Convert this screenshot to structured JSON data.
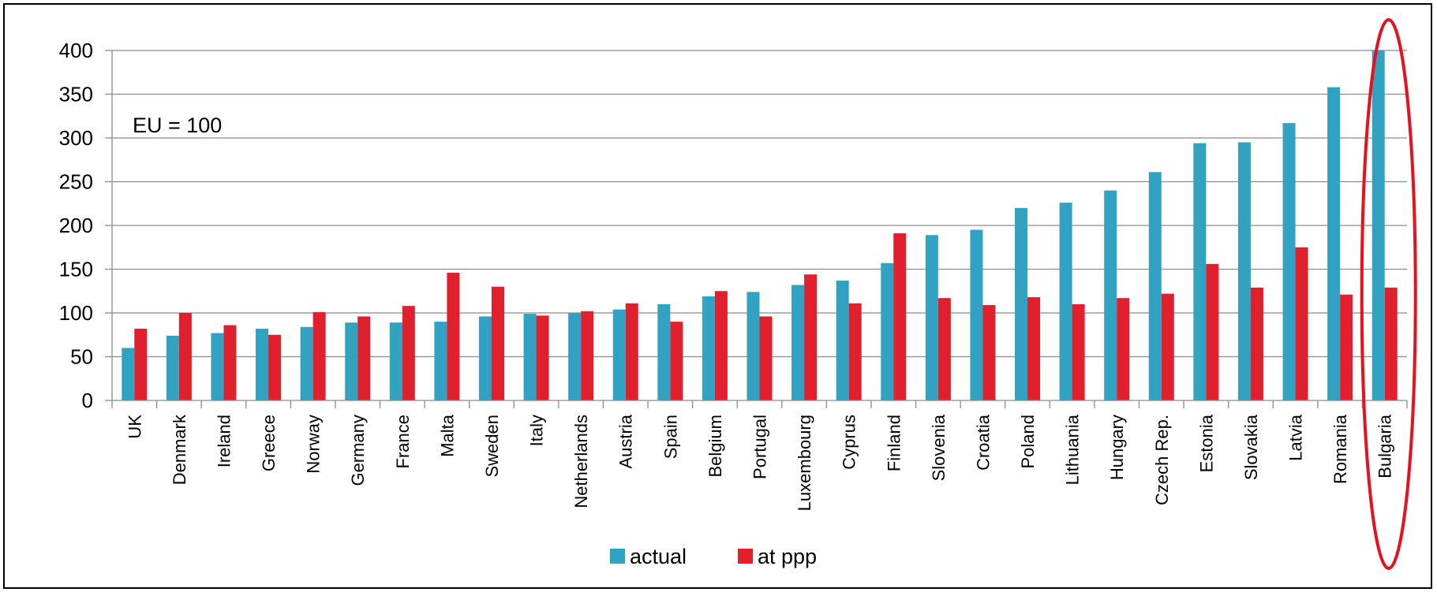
{
  "chart_data": {
    "type": "bar",
    "title": "",
    "xlabel": "",
    "ylabel": "",
    "annotation": "EU = 100",
    "ylim": [
      0,
      400
    ],
    "yticks": [
      0,
      50,
      100,
      150,
      200,
      250,
      300,
      350,
      400
    ],
    "grid": true,
    "legend_position": "bottom",
    "categories": [
      "UK",
      "Denmark",
      "Ireland",
      "Greece",
      "Norway",
      "Germany",
      "France",
      "Malta",
      "Sweden",
      "Italy",
      "Netherlands",
      "Austria",
      "Spain",
      "Belgium",
      "Portugal",
      "Luxembourg",
      "Cyprus",
      "Finland",
      "Slovenia",
      "Croatia",
      "Poland",
      "Lithuania",
      "Hungary",
      "Czech Rep.",
      "Estonia",
      "Slovakia",
      "Latvia",
      "Romania",
      "Bulgaria"
    ],
    "series": [
      {
        "name": "actual",
        "color": "#31a2c1",
        "values": [
          60,
          74,
          77,
          82,
          84,
          89,
          89,
          90,
          96,
          99,
          100,
          104,
          110,
          119,
          124,
          132,
          137,
          157,
          189,
          195,
          220,
          226,
          240,
          261,
          294,
          295,
          317,
          358,
          400
        ]
      },
      {
        "name": "at ppp",
        "color": "#e0212d",
        "values": [
          82,
          100,
          86,
          75,
          101,
          96,
          108,
          146,
          130,
          97,
          102,
          111,
          90,
          125,
          96,
          144,
          111,
          191,
          117,
          109,
          118,
          110,
          117,
          122,
          156,
          129,
          175,
          121,
          129
        ]
      }
    ],
    "highlight": {
      "category": "Bulgaria",
      "shape": "ellipse",
      "color": "#e8101c"
    }
  }
}
